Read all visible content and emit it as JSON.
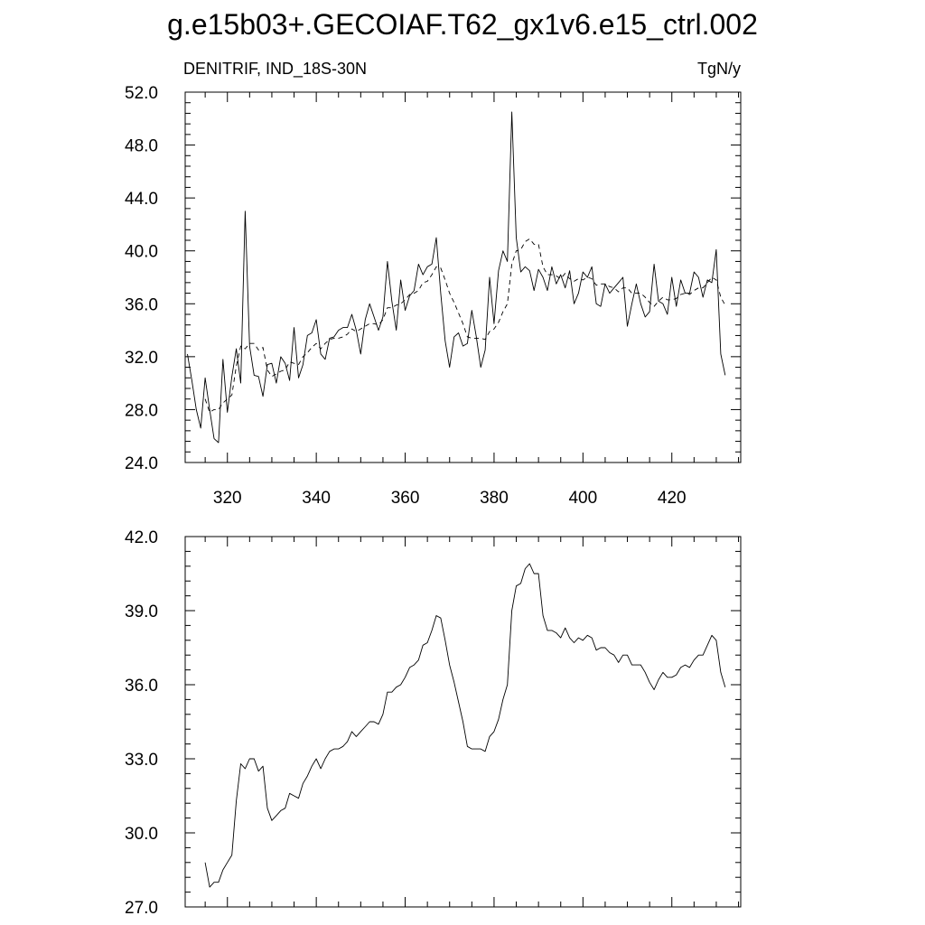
{
  "title": "g.e15b03+.GECOIAF.T62_gx1v6.e15_ctrl.002",
  "chart_data": [
    {
      "type": "line",
      "left_label": "DENITRIF, IND_18S-30N",
      "right_label": "TgN/y",
      "xlim": [
        310.5,
        435.5
      ],
      "ylim": [
        24,
        52
      ],
      "x_ticks": [
        320,
        340,
        360,
        380,
        400,
        420
      ],
      "y_ticks": [
        24,
        28,
        32,
        36,
        40,
        44,
        48,
        52
      ],
      "y_tick_labels": [
        "24.0",
        "28.0",
        "32.0",
        "36.0",
        "40.0",
        "44.0",
        "48.0",
        "52.0"
      ],
      "x_start": 311,
      "series": [
        {
          "style": "solid",
          "values": [
            32.2,
            30.2,
            28.0,
            26.6,
            30.4,
            28.0,
            25.8,
            25.5,
            31.8,
            27.8,
            30.5,
            32.6,
            30.0,
            43.0,
            32.8,
            30.6,
            30.5,
            29.0,
            31.4,
            31.5,
            30.0,
            32.0,
            31.5,
            30.2,
            34.2,
            30.4,
            31.4,
            33.6,
            33.8,
            34.8,
            32.2,
            31.8,
            33.4,
            33.5,
            34.0,
            34.2,
            34.2,
            35.2,
            34.0,
            32.2,
            34.8,
            36.0,
            35.0,
            34.0,
            35.0,
            39.2,
            36.2,
            34.0,
            37.8,
            35.5,
            36.6,
            37.0,
            39.0,
            38.2,
            38.8,
            39.0,
            41.0,
            36.8,
            33.2,
            31.2,
            33.5,
            33.8,
            32.8,
            33.0,
            35.5,
            33.5,
            31.2,
            32.5,
            38.0,
            34.5,
            38.5,
            40.0,
            39.2,
            50.5,
            41.0,
            38.4,
            38.8,
            38.5,
            37.0,
            38.6,
            38.0,
            37.0,
            38.8,
            37.5,
            38.2,
            37.2,
            38.5,
            36.0,
            36.8,
            38.4,
            38.0,
            38.8,
            36.0,
            35.8,
            37.5,
            36.8,
            37.2,
            37.6,
            38.0,
            34.3,
            36.0,
            37.5,
            36.0,
            35.0,
            35.4,
            39.0,
            36.2,
            36.0,
            35.2,
            38.0,
            35.8,
            37.8,
            36.8,
            36.8,
            38.4,
            38.0,
            36.5,
            37.8,
            37.6,
            40.1,
            32.2,
            30.6
          ]
        },
        {
          "style": "dashed",
          "values": [
            null,
            null,
            null,
            null,
            28.8,
            27.8,
            28.0,
            28.0,
            28.5,
            28.8,
            29.1,
            31.3,
            32.8,
            32.6,
            33.0,
            33.0,
            32.5,
            32.7,
            31.0,
            30.5,
            30.7,
            30.9,
            31.0,
            31.6,
            31.5,
            31.4,
            32.0,
            32.3,
            32.7,
            33.0,
            32.6,
            33.0,
            33.3,
            33.4,
            33.4,
            33.5,
            33.7,
            34.1,
            33.9,
            34.1,
            34.3,
            34.5,
            34.5,
            34.4,
            34.8,
            35.7,
            35.7,
            35.9,
            36.0,
            36.3,
            36.7,
            36.8,
            37.0,
            37.6,
            37.7,
            38.2,
            38.8,
            38.7,
            37.8,
            36.8,
            36.1,
            35.3,
            34.5,
            33.5,
            33.4,
            33.4,
            33.4,
            33.3,
            33.9,
            34.1,
            34.6,
            35.4,
            36.0,
            39.0,
            40.0,
            40.1,
            40.7,
            40.9,
            40.5,
            40.5,
            38.8,
            38.2,
            38.2,
            38.1,
            37.9,
            38.3,
            37.9,
            37.7,
            37.9,
            37.8,
            38.0,
            37.9,
            37.4,
            37.5,
            37.5,
            37.3,
            37.2,
            36.9,
            37.2,
            37.2,
            36.8,
            36.8,
            36.8,
            36.5,
            36.1,
            35.8,
            36.2,
            36.5,
            36.3,
            36.3,
            36.4,
            36.7,
            36.8,
            36.7,
            37.0,
            37.2,
            37.2,
            37.6,
            38.0,
            37.8,
            36.5,
            35.9,
            null
          ]
        }
      ]
    },
    {
      "type": "line",
      "xlim": [
        310.5,
        435.5
      ],
      "ylim": [
        27,
        42
      ],
      "x_ticks": [
        320,
        340,
        360,
        380,
        400,
        420
      ],
      "y_ticks": [
        27,
        30,
        33,
        36,
        39,
        42
      ],
      "y_tick_labels": [
        "27.0",
        "30.0",
        "33.0",
        "36.0",
        "39.0",
        "42.0"
      ],
      "x_start": 311,
      "series": [
        {
          "style": "solid",
          "values": [
            null,
            null,
            null,
            null,
            28.8,
            27.8,
            28.0,
            28.0,
            28.5,
            28.8,
            29.1,
            31.3,
            32.8,
            32.6,
            33.0,
            33.0,
            32.5,
            32.7,
            31.0,
            30.5,
            30.7,
            30.9,
            31.0,
            31.6,
            31.5,
            31.4,
            32.0,
            32.3,
            32.7,
            33.0,
            32.6,
            33.0,
            33.3,
            33.4,
            33.4,
            33.5,
            33.7,
            34.1,
            33.9,
            34.1,
            34.3,
            34.5,
            34.5,
            34.4,
            34.8,
            35.7,
            35.7,
            35.9,
            36.0,
            36.3,
            36.7,
            36.8,
            37.0,
            37.6,
            37.7,
            38.2,
            38.8,
            38.7,
            37.8,
            36.8,
            36.1,
            35.3,
            34.5,
            33.5,
            33.4,
            33.4,
            33.4,
            33.3,
            33.9,
            34.1,
            34.6,
            35.4,
            36.0,
            39.0,
            40.0,
            40.1,
            40.7,
            40.9,
            40.5,
            40.5,
            38.8,
            38.2,
            38.2,
            38.1,
            37.9,
            38.3,
            37.9,
            37.7,
            37.9,
            37.8,
            38.0,
            37.9,
            37.4,
            37.5,
            37.5,
            37.3,
            37.2,
            36.9,
            37.2,
            37.2,
            36.8,
            36.8,
            36.8,
            36.5,
            36.1,
            35.8,
            36.2,
            36.5,
            36.3,
            36.3,
            36.4,
            36.7,
            36.8,
            36.7,
            37.0,
            37.2,
            37.2,
            37.6,
            38.0,
            37.8,
            36.5,
            35.9,
            null
          ]
        }
      ]
    }
  ]
}
